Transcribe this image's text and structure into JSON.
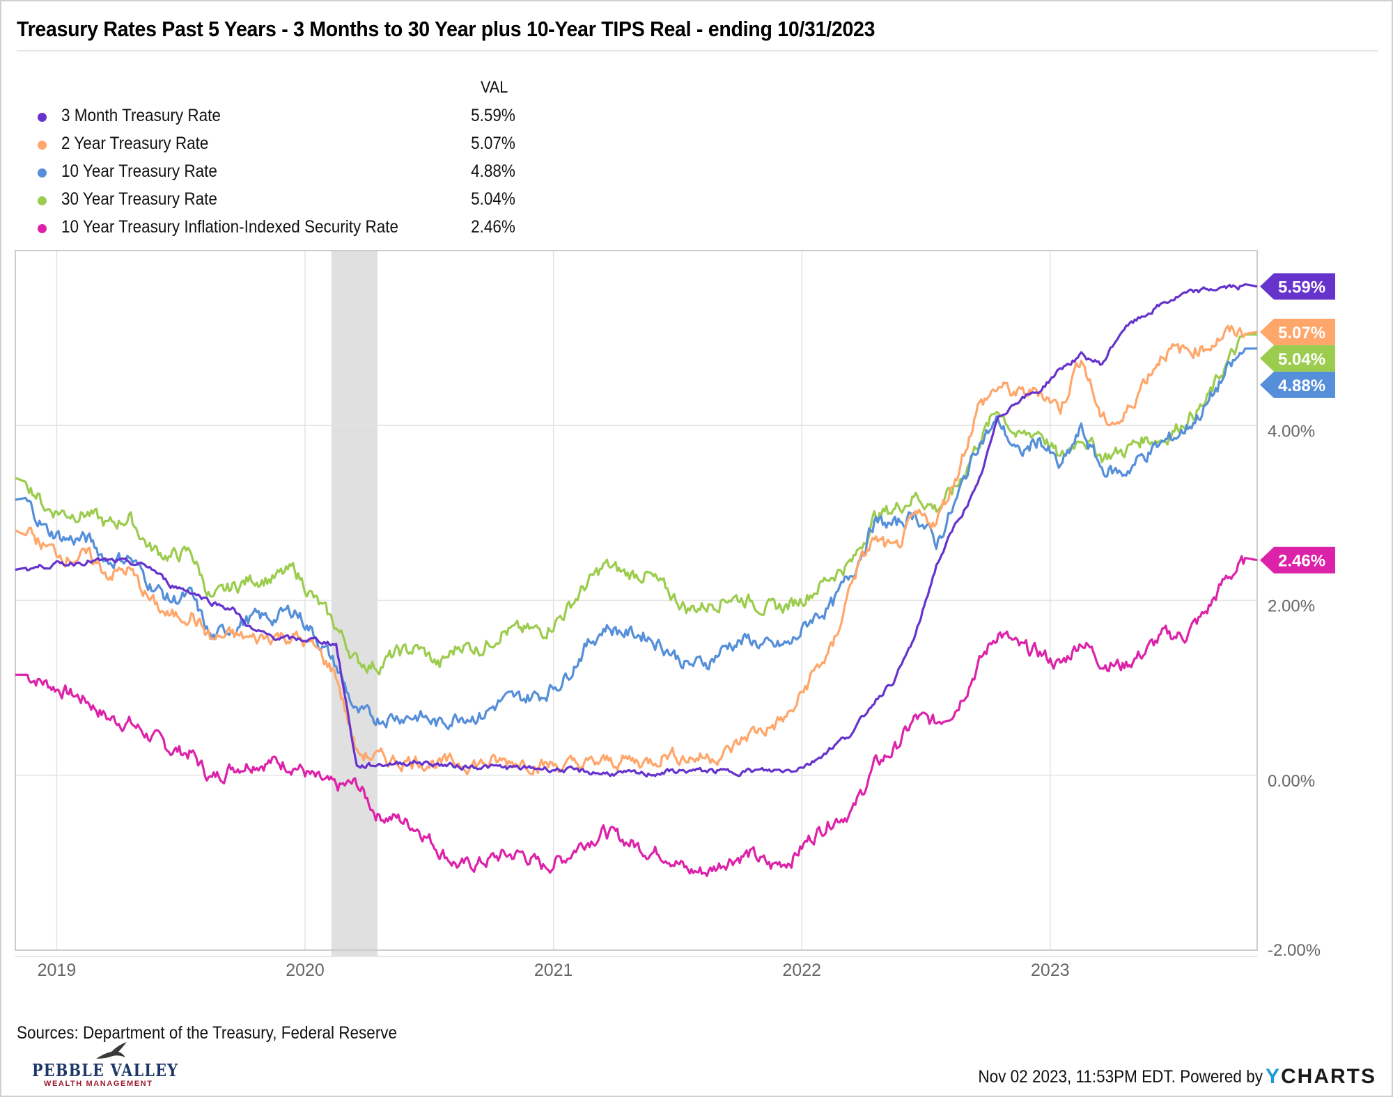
{
  "title": "Treasury Rates Past 5 Years - 3 Months to 30 Year plus 10-Year TIPS Real - ending 10/31/2023",
  "legend": {
    "header": "VAL",
    "items": [
      {
        "label": "3 Month Treasury Rate",
        "value": "5.59%",
        "color": "#6633cc"
      },
      {
        "label": "2 Year Treasury Rate",
        "value": "5.07%",
        "color": "#ffa66b"
      },
      {
        "label": "10 Year Treasury Rate",
        "value": "4.88%",
        "color": "#558ed9"
      },
      {
        "label": "30 Year Treasury Rate",
        "value": "5.04%",
        "color": "#9ccc4e"
      },
      {
        "label": "10 Year Treasury Inflation-Indexed Security Rate",
        "value": "2.46%",
        "color": "#dd22aa"
      }
    ]
  },
  "sources": "Sources: Department of the Treasury, Federal Reserve",
  "logo": {
    "name": "PEBBLE VALLEY",
    "tagline": "WEALTH MANAGEMENT"
  },
  "footer": {
    "timestamp": "Nov 02 2023, 11:53PM EDT. Powered by",
    "brand_y": "Y",
    "brand_rest": "CHARTS"
  },
  "chart_data": {
    "type": "line",
    "title": "Treasury Rates Past 5 Years - 3 Months to 30 Year plus 10-Year TIPS Real - ending 10/31/2023",
    "xlabel": "",
    "ylabel": "",
    "x_start": "2018-11",
    "x_end": "2023-10",
    "x_ticks": [
      "2019",
      "2020",
      "2021",
      "2022",
      "2023"
    ],
    "y_ticks": [
      "4.00%",
      "2.00%",
      "0.00%",
      "-2.00%"
    ],
    "y_tick_values": [
      4,
      2,
      0,
      -2
    ],
    "ylim": [
      -2,
      6
    ],
    "grid": true,
    "recession_band": {
      "start": "2020-02",
      "end": "2020-04"
    },
    "x": [
      "2018-11",
      "2018-12",
      "2019-01",
      "2019-02",
      "2019-03",
      "2019-04",
      "2019-05",
      "2019-06",
      "2019-07",
      "2019-08",
      "2019-09",
      "2019-10",
      "2019-11",
      "2019-12",
      "2020-01",
      "2020-02",
      "2020-03",
      "2020-04",
      "2020-05",
      "2020-06",
      "2020-07",
      "2020-08",
      "2020-09",
      "2020-10",
      "2020-11",
      "2020-12",
      "2021-01",
      "2021-02",
      "2021-03",
      "2021-04",
      "2021-05",
      "2021-06",
      "2021-07",
      "2021-08",
      "2021-09",
      "2021-10",
      "2021-11",
      "2021-12",
      "2022-01",
      "2022-02",
      "2022-03",
      "2022-04",
      "2022-05",
      "2022-06",
      "2022-07",
      "2022-08",
      "2022-09",
      "2022-10",
      "2022-11",
      "2022-12",
      "2023-01",
      "2023-02",
      "2023-03",
      "2023-04",
      "2023-05",
      "2023-06",
      "2023-07",
      "2023-08",
      "2023-09",
      "2023-10"
    ],
    "series": [
      {
        "name": "3 Month Treasury Rate",
        "color": "#6633cc",
        "end_label": "5.59%",
        "values": [
          2.35,
          2.4,
          2.42,
          2.45,
          2.45,
          2.43,
          2.38,
          2.18,
          2.1,
          1.98,
          1.9,
          1.65,
          1.58,
          1.55,
          1.55,
          1.5,
          0.1,
          0.12,
          0.14,
          0.15,
          0.12,
          0.1,
          0.1,
          0.09,
          0.08,
          0.08,
          0.06,
          0.04,
          0.02,
          0.02,
          0.01,
          0.04,
          0.05,
          0.05,
          0.04,
          0.05,
          0.05,
          0.06,
          0.15,
          0.33,
          0.5,
          0.85,
          1.1,
          1.6,
          2.4,
          2.9,
          3.3,
          4.1,
          4.3,
          4.4,
          4.65,
          4.8,
          4.7,
          5.1,
          5.25,
          5.4,
          5.5,
          5.55,
          5.58,
          5.59
        ]
      },
      {
        "name": "2 Year Treasury Rate",
        "color": "#ffa66b",
        "end_label": "5.07%",
        "values": [
          2.8,
          2.6,
          2.5,
          2.5,
          2.3,
          2.35,
          2.0,
          1.8,
          1.85,
          1.55,
          1.6,
          1.55,
          1.6,
          1.58,
          1.45,
          1.15,
          0.25,
          0.2,
          0.16,
          0.17,
          0.13,
          0.14,
          0.13,
          0.15,
          0.16,
          0.12,
          0.11,
          0.12,
          0.15,
          0.17,
          0.15,
          0.25,
          0.2,
          0.21,
          0.27,
          0.48,
          0.55,
          0.7,
          1.15,
          1.45,
          2.3,
          2.7,
          2.55,
          2.95,
          2.9,
          3.45,
          4.2,
          4.45,
          4.35,
          4.4,
          4.2,
          4.8,
          4.05,
          4.05,
          4.5,
          4.85,
          4.85,
          4.9,
          5.05,
          5.07
        ]
      },
      {
        "name": "10 Year Treasury Rate",
        "color": "#558ed9",
        "end_label": "4.88%",
        "values": [
          3.15,
          2.8,
          2.7,
          2.7,
          2.45,
          2.5,
          2.2,
          2.0,
          2.05,
          1.55,
          1.7,
          1.8,
          1.8,
          1.9,
          1.6,
          1.25,
          0.7,
          0.65,
          0.68,
          0.68,
          0.58,
          0.7,
          0.68,
          0.85,
          0.88,
          0.93,
          1.1,
          1.45,
          1.7,
          1.63,
          1.6,
          1.45,
          1.25,
          1.3,
          1.5,
          1.55,
          1.45,
          1.5,
          1.8,
          1.95,
          2.35,
          2.9,
          2.85,
          3.0,
          2.65,
          3.15,
          3.8,
          4.05,
          3.65,
          3.85,
          3.5,
          3.95,
          3.5,
          3.45,
          3.65,
          3.8,
          3.95,
          4.2,
          4.6,
          4.88
        ]
      },
      {
        "name": "30 Year Treasury Rate",
        "color": "#9ccc4e",
        "end_label": "5.04%",
        "values": [
          3.4,
          3.05,
          3.0,
          3.0,
          2.85,
          2.95,
          2.6,
          2.5,
          2.55,
          2.0,
          2.15,
          2.25,
          2.25,
          2.35,
          2.0,
          1.7,
          1.3,
          1.25,
          1.4,
          1.45,
          1.25,
          1.5,
          1.45,
          1.65,
          1.65,
          1.65,
          1.85,
          2.15,
          2.4,
          2.3,
          2.3,
          2.1,
          1.9,
          1.95,
          2.05,
          2.0,
          1.9,
          1.95,
          2.1,
          2.3,
          2.45,
          2.95,
          3.05,
          3.2,
          3.05,
          3.3,
          3.8,
          4.2,
          3.85,
          3.95,
          3.6,
          3.9,
          3.65,
          3.7,
          3.85,
          3.85,
          4.05,
          4.25,
          4.7,
          5.04
        ]
      },
      {
        "name": "10 Year Treasury Inflation-Indexed Security Rate",
        "color": "#dd22aa",
        "end_label": "2.46%",
        "values": [
          1.15,
          1.05,
          0.95,
          0.85,
          0.65,
          0.6,
          0.45,
          0.3,
          0.25,
          -0.05,
          0.1,
          0.15,
          0.15,
          0.12,
          -0.05,
          -0.15,
          -0.1,
          -0.45,
          -0.5,
          -0.6,
          -0.85,
          -1.05,
          -1.0,
          -0.92,
          -0.9,
          -1.05,
          -0.95,
          -0.75,
          -0.65,
          -0.75,
          -0.85,
          -0.9,
          -1.1,
          -1.1,
          -0.95,
          -0.9,
          -1.05,
          -0.95,
          -0.7,
          -0.5,
          -0.4,
          0.1,
          0.3,
          0.65,
          0.6,
          0.8,
          1.25,
          1.65,
          1.45,
          1.4,
          1.25,
          1.55,
          1.3,
          1.25,
          1.4,
          1.6,
          1.6,
          1.85,
          2.25,
          2.46
        ]
      }
    ]
  }
}
